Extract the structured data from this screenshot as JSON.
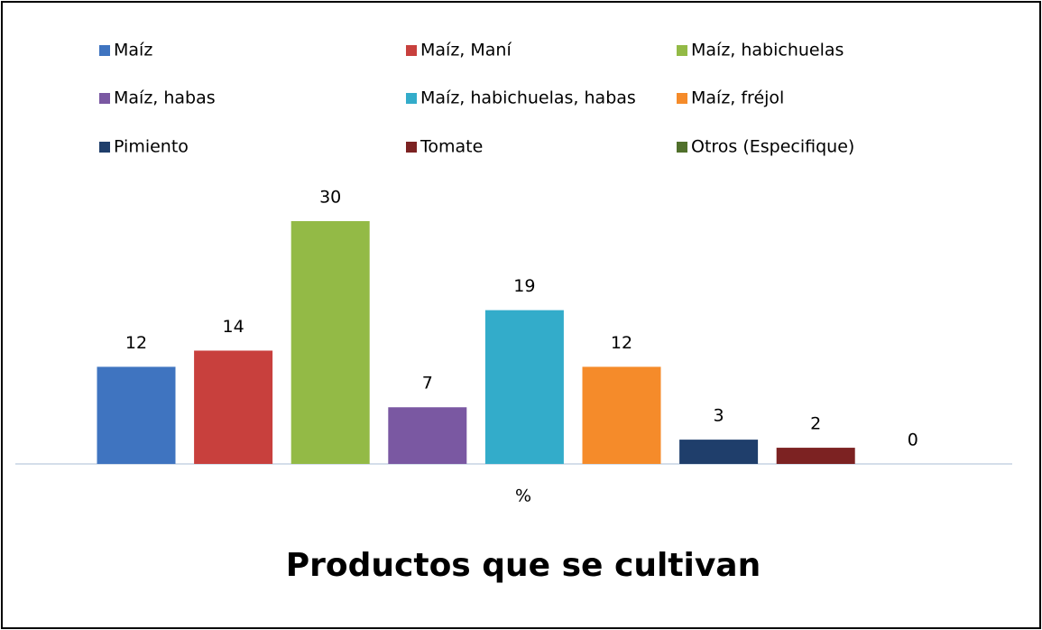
{
  "chart_data": {
    "type": "bar",
    "title": "Productos que se cultivan",
    "categories": [
      "%"
    ],
    "series": [
      {
        "name": "Maíz",
        "color": "#3f74c0",
        "values": [
          12
        ]
      },
      {
        "name": "Maíz, Maní",
        "color": "#c8403d",
        "values": [
          14
        ]
      },
      {
        "name": "Maíz, habichuelas",
        "color": "#93ba46",
        "values": [
          30
        ]
      },
      {
        "name": "Maíz, habas",
        "color": "#7a58a2",
        "values": [
          7
        ]
      },
      {
        "name": "Maíz, habichuelas, habas",
        "color": "#33acca",
        "values": [
          19
        ]
      },
      {
        "name": "Maíz, fréjol",
        "color": "#f58b2a",
        "values": [
          12
        ]
      },
      {
        "name": "Pimiento",
        "color": "#1f3e6b",
        "values": [
          3
        ]
      },
      {
        "name": "Tomate",
        "color": "#7c2222",
        "values": [
          2
        ]
      },
      {
        "name": "Otros (Especifique)",
        "color": "#50702b",
        "values": [
          0
        ]
      }
    ]
  }
}
